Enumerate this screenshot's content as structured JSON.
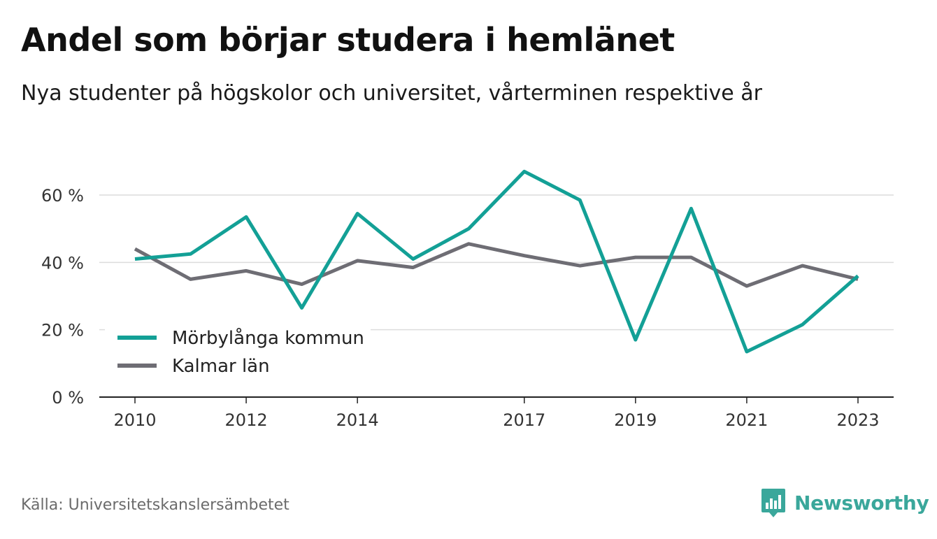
{
  "title": "Andel som börjar studera i hemlänet",
  "subtitle": "Nya studenter på högskolor och universitet, vårterminen respektive år",
  "source": "Källa: Universitetskanslersämbetet",
  "brand": {
    "name": "Newsworthy",
    "icon": "newsworthy-logo-icon",
    "color": "#3aa79b"
  },
  "chart_data": {
    "type": "line",
    "x": [
      2010,
      2011,
      2012,
      2013,
      2014,
      2015,
      2016,
      2017,
      2018,
      2019,
      2020,
      2021,
      2022,
      2023
    ],
    "x_tick_labels": [
      "2010",
      "2012",
      "2014",
      "2017",
      "2019",
      "2021",
      "2023"
    ],
    "y_ticks": [
      0,
      20,
      40,
      60
    ],
    "y_tick_labels": [
      "0 %",
      "20 %",
      "40 %",
      "60 %"
    ],
    "ylim": [
      0,
      70
    ],
    "grid": true,
    "legend_position": "bottom-left",
    "series": [
      {
        "name": "Mörbylånga kommun",
        "color": "#13a096",
        "values": [
          41,
          42.5,
          53.5,
          26.5,
          54.5,
          41,
          50,
          67,
          58.5,
          17,
          56,
          13.5,
          21.5,
          36
        ]
      },
      {
        "name": "Kalmar län",
        "color": "#6e6d74",
        "values": [
          44,
          35,
          37.5,
          33.5,
          40.5,
          38.5,
          45.5,
          42,
          39,
          41.5,
          41.5,
          33,
          39,
          35
        ]
      }
    ]
  }
}
